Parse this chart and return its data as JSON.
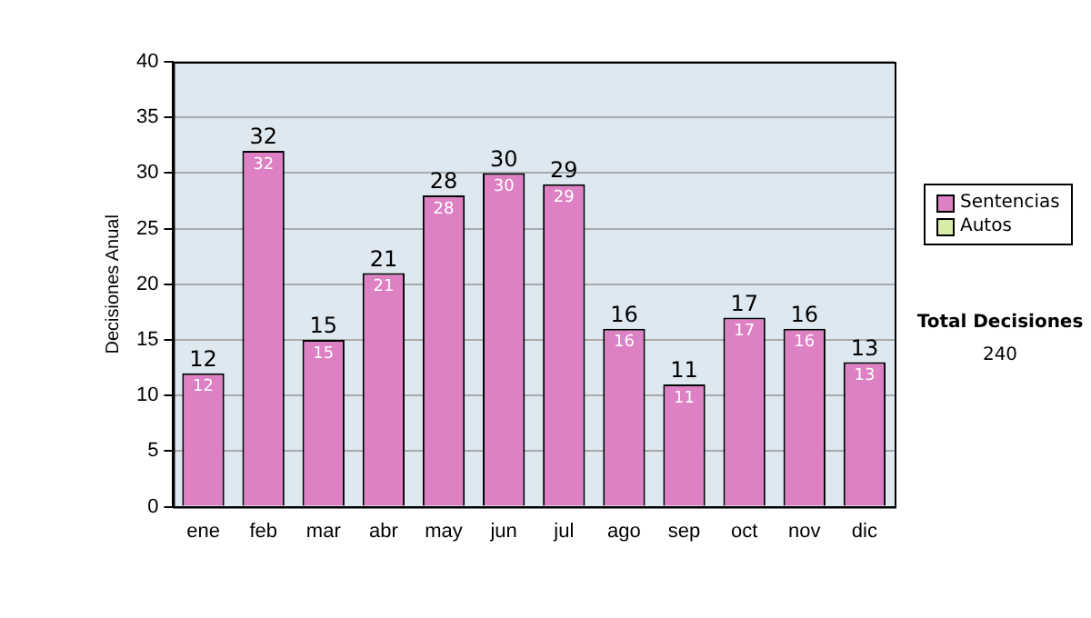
{
  "chart_data": {
    "type": "bar",
    "ylabel": "Decisiones Anual",
    "categories": [
      "ene",
      "feb",
      "mar",
      "abr",
      "may",
      "jun",
      "jul",
      "ago",
      "sep",
      "oct",
      "nov",
      "dic"
    ],
    "series": [
      {
        "name": "Sentencias",
        "color": "#dd80c4",
        "values": [
          12,
          32,
          15,
          21,
          28,
          30,
          29,
          16,
          11,
          17,
          16,
          13
        ],
        "value_labels": [
          "12",
          "32",
          "15",
          "21",
          "28",
          "30",
          "29",
          "16",
          "11",
          "17",
          "16",
          "13"
        ]
      },
      {
        "name": "Autos",
        "color": "#d8eca8",
        "values": [
          0,
          0,
          0,
          0,
          0,
          0,
          0,
          0,
          0,
          0,
          0,
          0
        ]
      }
    ],
    "stacked": true,
    "totals": [
      "12",
      "32",
      "15",
      "21",
      "28",
      "30",
      "29",
      "16",
      "11",
      "17",
      "16",
      "13"
    ],
    "ylim": [
      0,
      40
    ],
    "yticks": [
      0,
      5,
      10,
      15,
      20,
      25,
      30,
      35,
      40
    ],
    "grid": "y",
    "legend": "right",
    "annotations": [
      "Total Decisiones",
      "240"
    ]
  }
}
